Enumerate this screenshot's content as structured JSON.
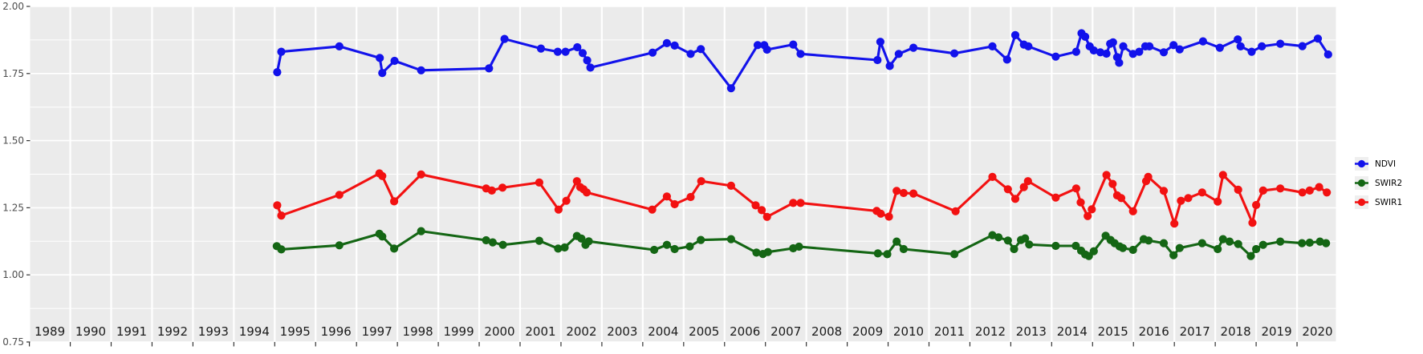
{
  "chart_data": {
    "type": "line",
    "title": "",
    "xlabel": "",
    "ylabel": "",
    "x_axis": {
      "years": [
        "1989",
        "1990",
        "1991",
        "1992",
        "1993",
        "1994",
        "1995",
        "1996",
        "1997",
        "1998",
        "1999",
        "2000",
        "2001",
        "2002",
        "2003",
        "2004",
        "2005",
        "2006",
        "2007",
        "2008",
        "2009",
        "2010",
        "2011",
        "2012",
        "2013",
        "2014",
        "2015",
        "2016",
        "2017",
        "2018",
        "2019",
        "2020"
      ]
    },
    "y_axis": {
      "tick_labels": [
        "2.00",
        "1.75",
        "1.50",
        "1.25",
        "1.00",
        "0.75"
      ],
      "tick_values": [
        2.0,
        1.75,
        1.5,
        1.25,
        1.0,
        0.75
      ],
      "minor_values": [
        1.875,
        1.625,
        1.375,
        1.125,
        0.875
      ],
      "range": [
        0.75,
        2.0
      ]
    },
    "grid": {
      "panel_bg": "#ebebeb",
      "gridline_color": "#ffffff",
      "tick_color": "#333333",
      "axis_text_color": "#4d4d4d",
      "year_text_color": "#1a1a1a"
    },
    "legend_position": "right-center",
    "series": [
      {
        "name": "NDVI",
        "color": "#1212eb",
        "points": [
          [
            1995.06,
            1.755
          ],
          [
            1995.16,
            1.831
          ],
          [
            1996.58,
            1.851
          ],
          [
            1997.57,
            1.808
          ],
          [
            1997.63,
            1.752
          ],
          [
            1997.93,
            1.797
          ],
          [
            1998.58,
            1.762
          ],
          [
            2000.24,
            1.769
          ],
          [
            2000.62,
            1.879
          ],
          [
            2001.51,
            1.843
          ],
          [
            2001.92,
            1.831
          ],
          [
            2002.11,
            1.831
          ],
          [
            2002.4,
            1.848
          ],
          [
            2002.53,
            1.826
          ],
          [
            2002.64,
            1.799
          ],
          [
            2002.72,
            1.772
          ],
          [
            2004.24,
            1.828
          ],
          [
            2004.59,
            1.863
          ],
          [
            2004.78,
            1.854
          ],
          [
            2005.17,
            1.823
          ],
          [
            2005.42,
            1.841
          ],
          [
            2006.16,
            1.695
          ],
          [
            2006.81,
            1.856
          ],
          [
            2006.97,
            1.856
          ],
          [
            2007.04,
            1.839
          ],
          [
            2007.68,
            1.858
          ],
          [
            2007.86,
            1.823
          ],
          [
            2009.74,
            1.8
          ],
          [
            2009.81,
            1.868
          ],
          [
            2010.04,
            1.778
          ],
          [
            2010.26,
            1.823
          ],
          [
            2010.62,
            1.846
          ],
          [
            2011.62,
            1.825
          ],
          [
            2012.55,
            1.851
          ],
          [
            2012.91,
            1.802
          ],
          [
            2013.11,
            1.893
          ],
          [
            2013.32,
            1.858
          ],
          [
            2013.43,
            1.851
          ],
          [
            2014.1,
            1.813
          ],
          [
            2014.6,
            1.831
          ],
          [
            2014.73,
            1.9
          ],
          [
            2014.82,
            1.887
          ],
          [
            2014.93,
            1.851
          ],
          [
            2015.03,
            1.836
          ],
          [
            2015.19,
            1.829
          ],
          [
            2015.34,
            1.824
          ],
          [
            2015.43,
            1.861
          ],
          [
            2015.5,
            1.866
          ],
          [
            2015.6,
            1.811
          ],
          [
            2015.65,
            1.79
          ],
          [
            2015.75,
            1.851
          ],
          [
            2015.99,
            1.823
          ],
          [
            2016.14,
            1.831
          ],
          [
            2016.29,
            1.851
          ],
          [
            2016.39,
            1.851
          ],
          [
            2016.74,
            1.829
          ],
          [
            2016.98,
            1.856
          ],
          [
            2017.13,
            1.84
          ],
          [
            2017.7,
            1.87
          ],
          [
            2018.11,
            1.846
          ],
          [
            2018.55,
            1.877
          ],
          [
            2018.62,
            1.851
          ],
          [
            2018.89,
            1.831
          ],
          [
            2019.14,
            1.851
          ],
          [
            2019.59,
            1.861
          ],
          [
            2020.13,
            1.852
          ],
          [
            2020.51,
            1.88
          ],
          [
            2020.76,
            1.821
          ]
        ]
      },
      {
        "name": "SWIR2",
        "color": "#146614",
        "points": [
          [
            1995.05,
            1.107
          ],
          [
            1995.16,
            1.095
          ],
          [
            1996.58,
            1.11
          ],
          [
            1997.56,
            1.153
          ],
          [
            1997.63,
            1.143
          ],
          [
            1997.92,
            1.098
          ],
          [
            1998.58,
            1.163
          ],
          [
            2000.17,
            1.129
          ],
          [
            2000.33,
            1.121
          ],
          [
            2000.58,
            1.112
          ],
          [
            2001.47,
            1.127
          ],
          [
            2001.93,
            1.098
          ],
          [
            2002.09,
            1.102
          ],
          [
            2002.39,
            1.145
          ],
          [
            2002.5,
            1.135
          ],
          [
            2002.6,
            1.112
          ],
          [
            2002.68,
            1.125
          ],
          [
            2004.28,
            1.093
          ],
          [
            2004.59,
            1.112
          ],
          [
            2004.78,
            1.096
          ],
          [
            2005.15,
            1.106
          ],
          [
            2005.42,
            1.13
          ],
          [
            2006.16,
            1.133
          ],
          [
            2006.78,
            1.083
          ],
          [
            2006.94,
            1.078
          ],
          [
            2007.06,
            1.085
          ],
          [
            2007.68,
            1.099
          ],
          [
            2007.82,
            1.105
          ],
          [
            2009.75,
            1.08
          ],
          [
            2009.98,
            1.077
          ],
          [
            2010.21,
            1.124
          ],
          [
            2010.38,
            1.096
          ],
          [
            2011.62,
            1.077
          ],
          [
            2012.55,
            1.148
          ],
          [
            2012.7,
            1.14
          ],
          [
            2012.93,
            1.128
          ],
          [
            2013.08,
            1.096
          ],
          [
            2013.25,
            1.13
          ],
          [
            2013.35,
            1.136
          ],
          [
            2013.45,
            1.113
          ],
          [
            2014.1,
            1.108
          ],
          [
            2014.59,
            1.108
          ],
          [
            2014.72,
            1.09
          ],
          [
            2014.82,
            1.076
          ],
          [
            2014.91,
            1.07
          ],
          [
            2015.03,
            1.088
          ],
          [
            2015.32,
            1.146
          ],
          [
            2015.44,
            1.13
          ],
          [
            2015.54,
            1.118
          ],
          [
            2015.66,
            1.106
          ],
          [
            2015.74,
            1.1
          ],
          [
            2015.99,
            1.093
          ],
          [
            2016.25,
            1.133
          ],
          [
            2016.37,
            1.128
          ],
          [
            2016.74,
            1.118
          ],
          [
            2016.98,
            1.073
          ],
          [
            2017.13,
            1.1
          ],
          [
            2017.68,
            1.118
          ],
          [
            2018.06,
            1.096
          ],
          [
            2018.19,
            1.133
          ],
          [
            2018.35,
            1.124
          ],
          [
            2018.56,
            1.115
          ],
          [
            2018.87,
            1.07
          ],
          [
            2019.0,
            1.096
          ],
          [
            2019.17,
            1.112
          ],
          [
            2019.59,
            1.124
          ],
          [
            2020.12,
            1.118
          ],
          [
            2020.31,
            1.12
          ],
          [
            2020.56,
            1.124
          ],
          [
            2020.71,
            1.118
          ]
        ]
      },
      {
        "name": "SWIR1",
        "color": "#f21111",
        "points": [
          [
            1995.06,
            1.259
          ],
          [
            1995.16,
            1.221
          ],
          [
            1996.58,
            1.298
          ],
          [
            1997.56,
            1.378
          ],
          [
            1997.63,
            1.368
          ],
          [
            1997.92,
            1.274
          ],
          [
            1998.58,
            1.374
          ],
          [
            2000.17,
            1.322
          ],
          [
            2000.31,
            1.314
          ],
          [
            2000.57,
            1.325
          ],
          [
            2001.47,
            1.344
          ],
          [
            2001.94,
            1.243
          ],
          [
            2002.13,
            1.276
          ],
          [
            2002.39,
            1.349
          ],
          [
            2002.47,
            1.327
          ],
          [
            2002.55,
            1.319
          ],
          [
            2002.63,
            1.307
          ],
          [
            2004.23,
            1.243
          ],
          [
            2004.59,
            1.292
          ],
          [
            2004.78,
            1.263
          ],
          [
            2005.17,
            1.29
          ],
          [
            2005.43,
            1.349
          ],
          [
            2006.16,
            1.332
          ],
          [
            2006.76,
            1.259
          ],
          [
            2006.91,
            1.241
          ],
          [
            2007.04,
            1.216
          ],
          [
            2007.68,
            1.268
          ],
          [
            2007.86,
            1.268
          ],
          [
            2009.72,
            1.238
          ],
          [
            2009.82,
            1.228
          ],
          [
            2010.02,
            1.217
          ],
          [
            2010.21,
            1.313
          ],
          [
            2010.38,
            1.305
          ],
          [
            2010.62,
            1.303
          ],
          [
            2011.65,
            1.237
          ],
          [
            2012.55,
            1.365
          ],
          [
            2012.93,
            1.319
          ],
          [
            2013.11,
            1.283
          ],
          [
            2013.32,
            1.327
          ],
          [
            2013.42,
            1.349
          ],
          [
            2014.1,
            1.288
          ],
          [
            2014.6,
            1.322
          ],
          [
            2014.71,
            1.27
          ],
          [
            2014.88,
            1.219
          ],
          [
            2014.98,
            1.244
          ],
          [
            2015.34,
            1.372
          ],
          [
            2015.49,
            1.339
          ],
          [
            2015.6,
            1.296
          ],
          [
            2015.7,
            1.286
          ],
          [
            2015.99,
            1.237
          ],
          [
            2016.31,
            1.349
          ],
          [
            2016.36,
            1.365
          ],
          [
            2016.74,
            1.313
          ],
          [
            2017.0,
            1.191
          ],
          [
            2017.16,
            1.276
          ],
          [
            2017.34,
            1.286
          ],
          [
            2017.68,
            1.307
          ],
          [
            2018.06,
            1.273
          ],
          [
            2018.19,
            1.372
          ],
          [
            2018.56,
            1.317
          ],
          [
            2018.91,
            1.194
          ],
          [
            2019.0,
            1.26
          ],
          [
            2019.17,
            1.314
          ],
          [
            2019.59,
            1.322
          ],
          [
            2020.13,
            1.307
          ],
          [
            2020.31,
            1.314
          ],
          [
            2020.54,
            1.327
          ],
          [
            2020.73,
            1.307
          ]
        ]
      }
    ]
  },
  "legend": {
    "items": [
      {
        "label": "NDVI"
      },
      {
        "label": "SWIR2"
      },
      {
        "label": "SWIR1"
      }
    ]
  }
}
